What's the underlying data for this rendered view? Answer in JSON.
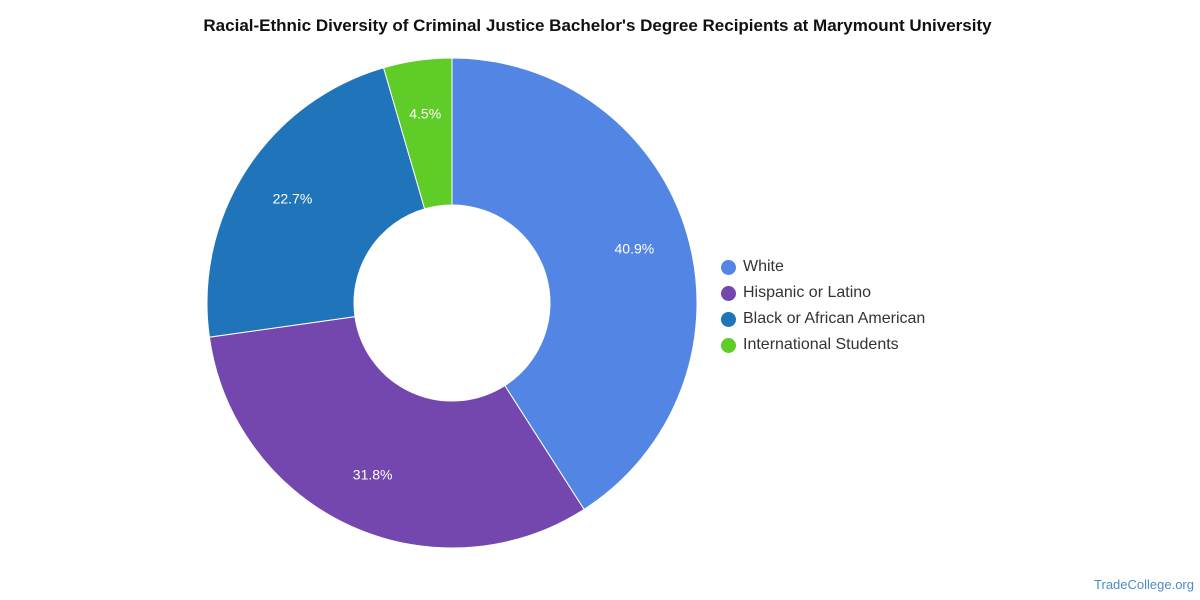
{
  "chart_data": {
    "type": "pie",
    "title": "Racial-Ethnic Diversity of Criminal Justice Bachelor's Degree Recipients at Marymount University",
    "donut": true,
    "legend_position": "right",
    "slices": [
      {
        "label": "White",
        "value": 40.9,
        "display": "40.9%",
        "color": "#5386E4"
      },
      {
        "label": "Hispanic or Latino",
        "value": 31.8,
        "display": "31.8%",
        "color": "#7447AF"
      },
      {
        "label": "Black or African American",
        "value": 22.7,
        "display": "22.7%",
        "color": "#1F74BA"
      },
      {
        "label": "International Students",
        "value": 4.5,
        "display": "4.5%",
        "color": "#5FCC27"
      }
    ]
  },
  "credit": "TradeCollege.org"
}
